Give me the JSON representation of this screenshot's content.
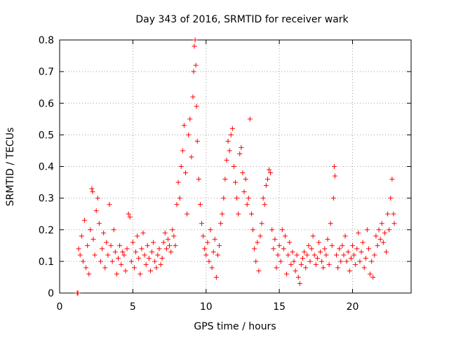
{
  "chart_data": {
    "type": "scatter",
    "title": "Day 343 of 2016, SRMTID for receiver wark",
    "xlabel": "GPS time / hours",
    "ylabel": "SRMTID / TECUs",
    "xlim": [
      0,
      24
    ],
    "ylim": [
      0,
      0.8
    ],
    "xticks": [
      0,
      5,
      10,
      15,
      20
    ],
    "xtick_labels": [
      "0",
      "5",
      "10",
      "15",
      "20"
    ],
    "yticks": [
      0,
      0.1,
      0.2,
      0.3,
      0.4,
      0.5,
      0.6,
      0.7,
      0.8
    ],
    "ytick_labels": [
      "0",
      "0.1",
      "0.2",
      "0.3",
      "0.4",
      "0.5",
      "0.6",
      "0.7",
      "0.8"
    ],
    "grid": true,
    "marker": "plus",
    "marker_color": "#ff0000",
    "series": [
      {
        "name": "SRMTID",
        "points": [
          [
            1.2,
            0.0
          ],
          [
            1.25,
            0.0
          ],
          [
            1.3,
            0.14
          ],
          [
            1.4,
            0.12
          ],
          [
            1.5,
            0.18
          ],
          [
            1.6,
            0.1
          ],
          [
            1.7,
            0.23
          ],
          [
            1.8,
            0.08
          ],
          [
            1.9,
            0.15
          ],
          [
            2.0,
            0.06
          ],
          [
            2.1,
            0.2
          ],
          [
            2.2,
            0.33
          ],
          [
            2.25,
            0.32
          ],
          [
            2.3,
            0.17
          ],
          [
            2.4,
            0.12
          ],
          [
            2.5,
            0.26
          ],
          [
            2.6,
            0.3
          ],
          [
            2.7,
            0.22
          ],
          [
            2.8,
            0.1
          ],
          [
            2.9,
            0.14
          ],
          [
            3.0,
            0.19
          ],
          [
            3.1,
            0.08
          ],
          [
            3.2,
            0.16
          ],
          [
            3.3,
            0.12
          ],
          [
            3.4,
            0.28
          ],
          [
            3.5,
            0.15
          ],
          [
            3.6,
            0.1
          ],
          [
            3.7,
            0.2
          ],
          [
            3.8,
            0.13
          ],
          [
            3.9,
            0.06
          ],
          [
            4.0,
            0.11
          ],
          [
            4.1,
            0.15
          ],
          [
            4.2,
            0.09
          ],
          [
            4.3,
            0.13
          ],
          [
            4.4,
            0.12
          ],
          [
            4.5,
            0.07
          ],
          [
            4.6,
            0.14
          ],
          [
            4.7,
            0.25
          ],
          [
            4.8,
            0.24
          ],
          [
            4.9,
            0.1
          ],
          [
            5.0,
            0.16
          ],
          [
            5.1,
            0.08
          ],
          [
            5.2,
            0.13
          ],
          [
            5.3,
            0.18
          ],
          [
            5.4,
            0.11
          ],
          [
            5.5,
            0.06
          ],
          [
            5.6,
            0.14
          ],
          [
            5.7,
            0.19
          ],
          [
            5.8,
            0.12
          ],
          [
            5.9,
            0.09
          ],
          [
            6.0,
            0.15
          ],
          [
            6.1,
            0.11
          ],
          [
            6.2,
            0.07
          ],
          [
            6.3,
            0.13
          ],
          [
            6.4,
            0.16
          ],
          [
            6.5,
            0.1
          ],
          [
            6.6,
            0.08
          ],
          [
            6.7,
            0.12
          ],
          [
            6.8,
            0.14
          ],
          [
            6.9,
            0.09
          ],
          [
            7.0,
            0.11
          ],
          [
            7.1,
            0.16
          ],
          [
            7.2,
            0.19
          ],
          [
            7.3,
            0.14
          ],
          [
            7.4,
            0.17
          ],
          [
            7.5,
            0.15
          ],
          [
            7.6,
            0.13
          ],
          [
            7.7,
            0.2
          ],
          [
            7.8,
            0.18
          ],
          [
            7.9,
            0.15
          ],
          [
            8.0,
            0.28
          ],
          [
            8.1,
            0.35
          ],
          [
            8.2,
            0.3
          ],
          [
            8.3,
            0.4
          ],
          [
            8.4,
            0.45
          ],
          [
            8.5,
            0.53
          ],
          [
            8.6,
            0.38
          ],
          [
            8.7,
            0.25
          ],
          [
            8.8,
            0.5
          ],
          [
            8.9,
            0.55
          ],
          [
            9.0,
            0.43
          ],
          [
            9.1,
            0.62
          ],
          [
            9.15,
            0.7
          ],
          [
            9.2,
            0.78
          ],
          [
            9.25,
            0.8
          ],
          [
            9.3,
            0.72
          ],
          [
            9.35,
            0.59
          ],
          [
            9.4,
            0.48
          ],
          [
            9.5,
            0.36
          ],
          [
            9.6,
            0.28
          ],
          [
            9.7,
            0.22
          ],
          [
            9.8,
            0.18
          ],
          [
            9.9,
            0.14
          ],
          [
            10.0,
            0.12
          ],
          [
            10.1,
            0.16
          ],
          [
            10.2,
            0.1
          ],
          [
            10.3,
            0.2
          ],
          [
            10.4,
            0.08
          ],
          [
            10.5,
            0.13
          ],
          [
            10.6,
            0.17
          ],
          [
            10.7,
            0.05
          ],
          [
            10.8,
            0.12
          ],
          [
            10.9,
            0.15
          ],
          [
            11.0,
            0.22
          ],
          [
            11.1,
            0.25
          ],
          [
            11.2,
            0.3
          ],
          [
            11.3,
            0.36
          ],
          [
            11.4,
            0.42
          ],
          [
            11.5,
            0.48
          ],
          [
            11.6,
            0.45
          ],
          [
            11.7,
            0.5
          ],
          [
            11.8,
            0.52
          ],
          [
            11.9,
            0.4
          ],
          [
            12.0,
            0.35
          ],
          [
            12.1,
            0.3
          ],
          [
            12.2,
            0.25
          ],
          [
            12.3,
            0.44
          ],
          [
            12.4,
            0.46
          ],
          [
            12.5,
            0.38
          ],
          [
            12.6,
            0.32
          ],
          [
            12.7,
            0.36
          ],
          [
            12.8,
            0.28
          ],
          [
            12.9,
            0.3
          ],
          [
            13.0,
            0.55
          ],
          [
            13.1,
            0.25
          ],
          [
            13.2,
            0.2
          ],
          [
            13.3,
            0.14
          ],
          [
            13.4,
            0.1
          ],
          [
            13.5,
            0.16
          ],
          [
            13.6,
            0.07
          ],
          [
            13.7,
            0.18
          ],
          [
            13.8,
            0.22
          ],
          [
            13.9,
            0.3
          ],
          [
            14.0,
            0.28
          ],
          [
            14.1,
            0.34
          ],
          [
            14.2,
            0.36
          ],
          [
            14.3,
            0.39
          ],
          [
            14.4,
            0.38
          ],
          [
            14.5,
            0.2
          ],
          [
            14.6,
            0.14
          ],
          [
            14.7,
            0.17
          ],
          [
            14.8,
            0.08
          ],
          [
            14.9,
            0.12
          ],
          [
            15.0,
            0.15
          ],
          [
            15.1,
            0.1
          ],
          [
            15.2,
            0.2
          ],
          [
            15.3,
            0.14
          ],
          [
            15.4,
            0.18
          ],
          [
            15.5,
            0.06
          ],
          [
            15.6,
            0.12
          ],
          [
            15.7,
            0.16
          ],
          [
            15.8,
            0.09
          ],
          [
            15.9,
            0.13
          ],
          [
            16.0,
            0.1
          ],
          [
            16.1,
            0.07
          ],
          [
            16.2,
            0.12
          ],
          [
            16.3,
            0.05
          ],
          [
            16.4,
            0.03
          ],
          [
            16.5,
            0.09
          ],
          [
            16.6,
            0.11
          ],
          [
            16.7,
            0.13
          ],
          [
            16.8,
            0.08
          ],
          [
            16.9,
            0.12
          ],
          [
            17.0,
            0.15
          ],
          [
            17.1,
            0.1
          ],
          [
            17.2,
            0.14
          ],
          [
            17.3,
            0.18
          ],
          [
            17.4,
            0.12
          ],
          [
            17.5,
            0.09
          ],
          [
            17.6,
            0.11
          ],
          [
            17.7,
            0.16
          ],
          [
            17.8,
            0.13
          ],
          [
            17.9,
            0.1
          ],
          [
            18.0,
            0.08
          ],
          [
            18.1,
            0.14
          ],
          [
            18.2,
            0.12
          ],
          [
            18.3,
            0.17
          ],
          [
            18.4,
            0.09
          ],
          [
            18.5,
            0.22
          ],
          [
            18.6,
            0.15
          ],
          [
            18.7,
            0.3
          ],
          [
            18.75,
            0.4
          ],
          [
            18.8,
            0.37
          ],
          [
            18.9,
            0.12
          ],
          [
            19.0,
            0.08
          ],
          [
            19.1,
            0.14
          ],
          [
            19.2,
            0.1
          ],
          [
            19.3,
            0.15
          ],
          [
            19.4,
            0.12
          ],
          [
            19.5,
            0.18
          ],
          [
            19.6,
            0.1
          ],
          [
            19.7,
            0.13
          ],
          [
            19.8,
            0.07
          ],
          [
            19.9,
            0.11
          ],
          [
            20.0,
            0.15
          ],
          [
            20.1,
            0.12
          ],
          [
            20.2,
            0.09
          ],
          [
            20.3,
            0.14
          ],
          [
            20.4,
            0.19
          ],
          [
            20.5,
            0.1
          ],
          [
            20.6,
            0.13
          ],
          [
            20.7,
            0.16
          ],
          [
            20.8,
            0.08
          ],
          [
            20.9,
            0.11
          ],
          [
            21.0,
            0.2
          ],
          [
            21.1,
            0.14
          ],
          [
            21.2,
            0.06
          ],
          [
            21.3,
            0.1
          ],
          [
            21.4,
            0.05
          ],
          [
            21.5,
            0.12
          ],
          [
            21.6,
            0.18
          ],
          [
            21.7,
            0.15
          ],
          [
            21.8,
            0.2
          ],
          [
            21.9,
            0.17
          ],
          [
            22.0,
            0.22
          ],
          [
            22.1,
            0.16
          ],
          [
            22.2,
            0.19
          ],
          [
            22.3,
            0.13
          ],
          [
            22.4,
            0.25
          ],
          [
            22.5,
            0.2
          ],
          [
            22.6,
            0.3
          ],
          [
            22.7,
            0.36
          ],
          [
            22.8,
            0.25
          ],
          [
            22.85,
            0.22
          ]
        ]
      }
    ]
  }
}
